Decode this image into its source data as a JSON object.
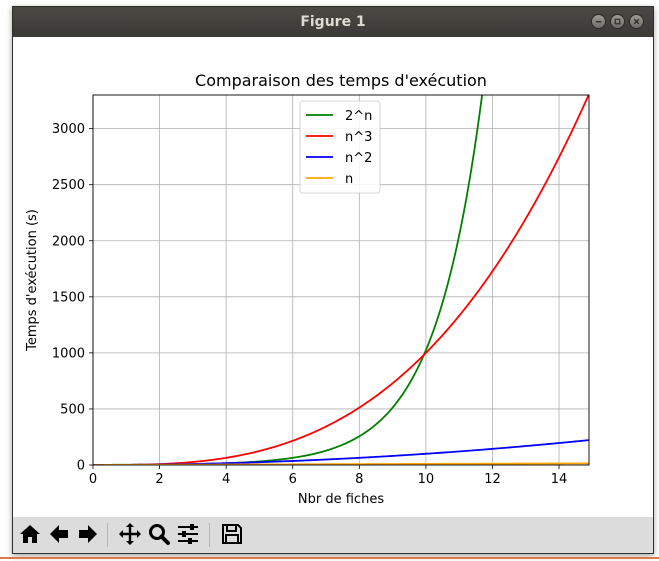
{
  "window": {
    "title": "Figure 1",
    "buttons": [
      "minimize",
      "maximize",
      "close"
    ]
  },
  "chart_data": {
    "type": "line",
    "title": "Comparaison des temps d'exécution",
    "xlabel": "Nbr de fiches",
    "ylabel": "Temps d'exécution (s)",
    "xlim": [
      0,
      14.9
    ],
    "ylim": [
      0,
      3300
    ],
    "xticks": [
      0,
      2,
      4,
      6,
      8,
      10,
      12,
      14
    ],
    "yticks": [
      0,
      500,
      1000,
      1500,
      2000,
      2500,
      3000
    ],
    "grid": true,
    "legend_position": "top-center",
    "series": [
      {
        "name": "2^n",
        "color": "#008000",
        "formula": "2^x",
        "x": [
          0,
          2,
          4,
          6,
          8,
          10,
          11,
          11.69
        ],
        "values": [
          1,
          4,
          16,
          64,
          256,
          1024,
          2048,
          3300
        ]
      },
      {
        "name": "n^3",
        "color": "#ff0000",
        "formula": "x^3",
        "x": [
          0,
          2,
          4,
          6,
          8,
          10,
          12,
          14,
          14.9
        ],
        "values": [
          0,
          8,
          64,
          216,
          512,
          1000,
          1728,
          2744,
          3308
        ]
      },
      {
        "name": "n^2",
        "color": "#0000ff",
        "formula": "x^2",
        "x": [
          0,
          2,
          4,
          6,
          8,
          10,
          12,
          14,
          14.9
        ],
        "values": [
          0,
          4,
          16,
          36,
          64,
          100,
          144,
          196,
          222
        ]
      },
      {
        "name": "n",
        "color": "#ffa500",
        "formula": "x",
        "x": [
          0,
          2,
          4,
          6,
          8,
          10,
          12,
          14,
          14.9
        ],
        "values": [
          0,
          2,
          4,
          6,
          8,
          10,
          12,
          14,
          14.9
        ]
      }
    ]
  },
  "toolbar": {
    "buttons": [
      {
        "name": "home-button",
        "icon": "home-icon"
      },
      {
        "name": "back-button",
        "icon": "arrow-left-icon"
      },
      {
        "name": "forward-button",
        "icon": "arrow-right-icon"
      },
      {
        "name": "pan-button",
        "icon": "move-icon"
      },
      {
        "name": "zoom-button",
        "icon": "magnifier-icon"
      },
      {
        "name": "configure-subplots-button",
        "icon": "sliders-icon"
      },
      {
        "name": "save-button",
        "icon": "floppy-icon"
      }
    ]
  }
}
